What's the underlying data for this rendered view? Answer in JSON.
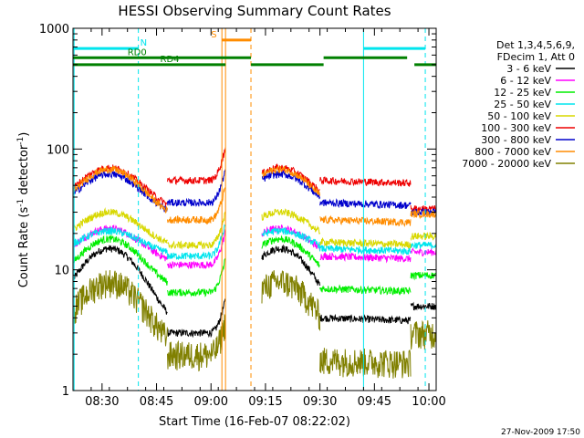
{
  "chart_data": {
    "type": "line",
    "title": "HESSI Observing Summary Count Rates",
    "xlabel": "Start Time (16-Feb-07 08:22:02)",
    "ylabel_main": "Count Rate (s",
    "ylabel_sup1": "-1",
    "ylabel_mid": " detector",
    "ylabel_sup2": "-1",
    "ylabel_end": ")",
    "yscale": "log",
    "ylim": [
      1,
      1000
    ],
    "xlim_minutes": [
      0,
      100
    ],
    "x_ticks": [
      {
        "t": 8,
        "label": "08:30"
      },
      {
        "t": 23,
        "label": "08:45"
      },
      {
        "t": 38,
        "label": "09:00"
      },
      {
        "t": 53,
        "label": "09:15"
      },
      {
        "t": 68,
        "label": "09:30"
      },
      {
        "t": 83,
        "label": "09:45"
      },
      {
        "t": 98,
        "label": "10:00"
      }
    ],
    "y_ticks": [
      {
        "v": 1,
        "label": "1"
      },
      {
        "v": 10,
        "label": "10"
      },
      {
        "v": 100,
        "label": "100"
      },
      {
        "v": 1000,
        "label": "1000"
      }
    ],
    "legend_header": [
      "Det 1,3,4,5,6,9,",
      "FDecim 1, Att 0"
    ],
    "series": [
      {
        "name": "3 - 6 keV",
        "color": "#000000",
        "peak1": 15,
        "base1": 3,
        "flat1": 3,
        "peak2": 15,
        "flat2": 4,
        "end": 5
      },
      {
        "name": "6 - 12 keV",
        "color": "#ff00ff",
        "peak1": 22,
        "base1": 11,
        "flat1": 11,
        "peak2": 22,
        "flat2": 13,
        "end": 14
      },
      {
        "name": "12 - 25 keV",
        "color": "#00ee00",
        "peak1": 18,
        "base1": 6.5,
        "flat1": 6.5,
        "peak2": 18,
        "flat2": 7,
        "end": 9
      },
      {
        "name": "25 - 50 keV",
        "color": "#00e5ee",
        "peak1": 21,
        "base1": 13,
        "flat1": 13,
        "peak2": 21,
        "flat2": 15,
        "end": 16
      },
      {
        "name": "50 - 100 keV",
        "color": "#d8d800",
        "peak1": 30,
        "base1": 15,
        "flat1": 16,
        "peak2": 30,
        "flat2": 17,
        "end": 19
      },
      {
        "name": "100 - 300 keV",
        "color": "#ee0000",
        "peak1": 70,
        "base1": 30,
        "flat1": 55,
        "peak2": 70,
        "flat2": 55,
        "end": 32
      },
      {
        "name": "300 - 800 keV",
        "color": "#0000cc",
        "peak1": 62,
        "base1": 27,
        "flat1": 36,
        "peak2": 62,
        "flat2": 36,
        "end": 30
      },
      {
        "name": "800 - 7000 keV",
        "color": "#ff8c00",
        "peak1": 68,
        "base1": 26,
        "flat1": 26,
        "peak2": 68,
        "flat2": 26,
        "end": 29
      },
      {
        "name": "7000 - 20000 keV",
        "color": "#808000",
        "peak1": 8,
        "base1": 2,
        "flat1": 2,
        "peak2": 8,
        "flat2": 1.8,
        "end": 3
      }
    ],
    "flags": [
      {
        "label": "N",
        "color": "#00e5ee",
        "y": 680,
        "segments": [
          [
            0,
            18
          ],
          [
            80,
            97
          ]
        ],
        "label_t": 18.5
      },
      {
        "label": "RD0",
        "color": "#008000",
        "y": 570,
        "segments": [
          [
            0,
            49
          ],
          [
            69,
            92
          ]
        ],
        "label_t": 15
      },
      {
        "label": "RD4",
        "color": "#008000",
        "y": 500,
        "segments": [
          [
            0,
            42
          ],
          [
            49,
            69
          ],
          [
            94,
            100
          ]
        ],
        "label_t": 24
      },
      {
        "label": "S",
        "color": "#ff8c00",
        "y": 800,
        "segments": [
          [
            41,
            49
          ]
        ],
        "label_t": 38
      }
    ],
    "vlines": [
      {
        "t": 18,
        "color": "#00e5ee",
        "dash": true
      },
      {
        "t": 41,
        "color": "#ff8c00",
        "dash": false
      },
      {
        "t": 42,
        "color": "#ff8c00",
        "dash": false
      },
      {
        "t": 49,
        "color": "#ff8c00",
        "dash": true
      },
      {
        "t": 80,
        "color": "#00e5ee",
        "dash": false
      },
      {
        "t": 97,
        "color": "#00e5ee",
        "dash": true
      },
      {
        "t": 0.3,
        "color": "#00e5ee",
        "dash": false
      }
    ],
    "gap_minutes": [
      42,
      52
    ],
    "footer": "27-Nov-2009 17:50"
  }
}
